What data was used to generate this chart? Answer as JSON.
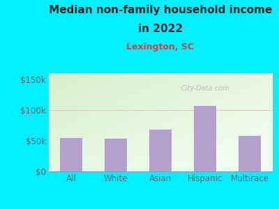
{
  "title_line1": "Median non-family household income",
  "title_line2": "in 2022",
  "subtitle": "Lexington, SC",
  "categories": [
    "All",
    "White",
    "Asian",
    "Hispanic",
    "Multirace"
  ],
  "values": [
    55000,
    53000,
    68000,
    107000,
    58000
  ],
  "bar_color": "#b3a0cc",
  "background_color": "#00f0ff",
  "plot_bg_color_topleft": "#d8eecc",
  "plot_bg_color_bottomright": "#f5fff5",
  "title_color": "#222222",
  "subtitle_color": "#cc4444",
  "tick_label_color": "#666666",
  "yticks": [
    0,
    50000,
    100000,
    150000
  ],
  "ytick_labels": [
    "$0",
    "$50k",
    "$100k",
    "$150k"
  ],
  "ylim": [
    0,
    160000
  ],
  "watermark": "City-Data.com",
  "title_fontsize": 11,
  "subtitle_fontsize": 9,
  "tick_fontsize": 8.5
}
